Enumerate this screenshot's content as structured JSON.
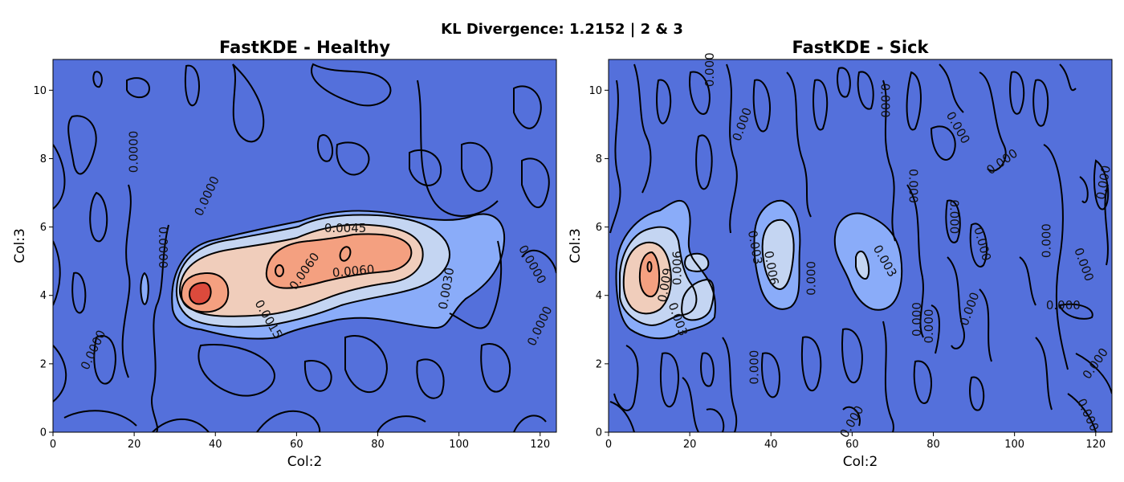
{
  "figure": {
    "suptitle": "KL Divergence: 1.2152 | 2 & 3"
  },
  "colors": {
    "background": "#5470db",
    "level1": "#8aacf9",
    "level2": "#c4d5f2",
    "level3": "#f0cdbb",
    "level4": "#f4a080",
    "level5": "#dc4a3c",
    "contour_line": "#000000"
  },
  "chart_data": [
    {
      "type": "contour",
      "title": "FastKDE - Healthy",
      "xlabel": "Col:2",
      "ylabel": "Col:3",
      "xlim": [
        0,
        124
      ],
      "ylim": [
        0,
        10.9
      ],
      "xticks": [
        "0",
        "20",
        "40",
        "60",
        "80",
        "100",
        "120"
      ],
      "yticks": [
        "0",
        "2",
        "4",
        "6",
        "8",
        "10"
      ],
      "contour_labels": [
        {
          "text": "0.0000",
          "x": 20,
          "y": 8.2,
          "rot": -90
        },
        {
          "text": "0.0000",
          "x": 38,
          "y": 6.9,
          "rot": -65
        },
        {
          "text": "0.0000",
          "x": 27,
          "y": 5.4,
          "rot": 90
        },
        {
          "text": "0.0000",
          "x": 10,
          "y": 2.4,
          "rot": -65
        },
        {
          "text": "0.0000",
          "x": 118,
          "y": 4.9,
          "rot": 60
        },
        {
          "text": "0.0000",
          "x": 120,
          "y": 3.1,
          "rot": -65
        },
        {
          "text": "0.0045",
          "x": 72,
          "y": 5.95,
          "rot": 0
        },
        {
          "text": "0.0060",
          "x": 62,
          "y": 4.7,
          "rot": -55
        },
        {
          "text": "0.0060",
          "x": 74,
          "y": 4.7,
          "rot": -5
        },
        {
          "text": "0.0030",
          "x": 97,
          "y": 4.2,
          "rot": -80
        },
        {
          "text": "0.0015",
          "x": 53,
          "y": 3.3,
          "rot": 60
        }
      ]
    },
    {
      "type": "contour",
      "title": "FastKDE - Sick",
      "xlabel": "Col:2",
      "ylabel": "Col:3",
      "xlim": [
        0,
        124
      ],
      "ylim": [
        0,
        10.9
      ],
      "xticks": [
        "0",
        "20",
        "40",
        "60",
        "80",
        "100",
        "120"
      ],
      "yticks": [
        "0",
        "2",
        "4",
        "6",
        "8",
        "10"
      ],
      "contour_labels": [
        {
          "text": "0.000",
          "x": 25,
          "y": 10.6,
          "rot": -90
        },
        {
          "text": "0.000",
          "x": 68,
          "y": 9.7,
          "rot": 90
        },
        {
          "text": "0.000",
          "x": 33,
          "y": 9.0,
          "rot": -70
        },
        {
          "text": "0.000",
          "x": 86,
          "y": 8.9,
          "rot": 60
        },
        {
          "text": "0.000",
          "x": 97,
          "y": 7.9,
          "rot": -35
        },
        {
          "text": "0.000",
          "x": 75,
          "y": 7.2,
          "rot": 90
        },
        {
          "text": "0.000",
          "x": 85,
          "y": 6.3,
          "rot": 90
        },
        {
          "text": "0.000",
          "x": 122,
          "y": 7.3,
          "rot": -80
        },
        {
          "text": "0.000",
          "x": 92,
          "y": 5.5,
          "rot": 75
        },
        {
          "text": "0.000",
          "x": 108,
          "y": 5.6,
          "rot": -90
        },
        {
          "text": "0.000",
          "x": 117,
          "y": 4.9,
          "rot": 70
        },
        {
          "text": "0.000",
          "x": 50,
          "y": 4.5,
          "rot": -90
        },
        {
          "text": "0.003",
          "x": 36,
          "y": 5.4,
          "rot": 80
        },
        {
          "text": "0.006",
          "x": 40,
          "y": 4.8,
          "rot": 80
        },
        {
          "text": "0.003",
          "x": 68,
          "y": 5.0,
          "rot": 60
        },
        {
          "text": "0.009",
          "x": 14,
          "y": 4.3,
          "rot": -80
        },
        {
          "text": "0.006",
          "x": 17,
          "y": 4.8,
          "rot": -90
        },
        {
          "text": "0.003",
          "x": 17,
          "y": 3.3,
          "rot": 70
        },
        {
          "text": "0.000",
          "x": 76,
          "y": 3.3,
          "rot": -90
        },
        {
          "text": "0.000",
          "x": 79,
          "y": 3.1,
          "rot": -90
        },
        {
          "text": "0.000",
          "x": 89,
          "y": 3.6,
          "rot": -70
        },
        {
          "text": "0.000",
          "x": 112,
          "y": 3.7,
          "rot": 0
        },
        {
          "text": "0.000",
          "x": 36,
          "y": 1.9,
          "rot": -90
        },
        {
          "text": "0.000",
          "x": 120,
          "y": 2.0,
          "rot": -55
        },
        {
          "text": "0.000",
          "x": 60,
          "y": 0.3,
          "rot": -60
        },
        {
          "text": "0.000",
          "x": 118,
          "y": 0.5,
          "rot": 65
        }
      ]
    }
  ]
}
